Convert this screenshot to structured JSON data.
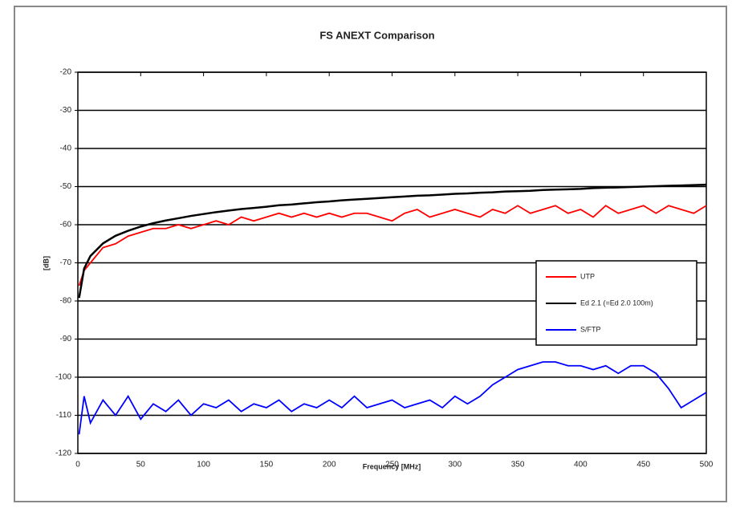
{
  "chart_data": {
    "type": "line",
    "title": "FS ANEXT Comparison",
    "x_label": "Frequency [MHz]",
    "y_label": "[dB]",
    "x": [
      1,
      5,
      10,
      20,
      30,
      40,
      50,
      60,
      70,
      80,
      90,
      100,
      110,
      120,
      130,
      140,
      150,
      160,
      170,
      180,
      190,
      200,
      210,
      220,
      230,
      240,
      250,
      260,
      270,
      280,
      290,
      300,
      310,
      320,
      330,
      340,
      350,
      360,
      370,
      380,
      390,
      400,
      410,
      420,
      430,
      440,
      450,
      460,
      470,
      480,
      490,
      500
    ],
    "series": [
      {
        "name": "UTP",
        "color": "#ff0000",
        "values": [
          -76,
          -72,
          -70,
          -66,
          -65,
          -63,
          -62,
          -61,
          -61,
          -60,
          -61,
          -60,
          -59,
          -60,
          -58,
          -59,
          -58,
          -57,
          -58,
          -57,
          -58,
          -57,
          -58,
          -57,
          -57,
          -58,
          -59,
          -57,
          -56,
          -58,
          -57,
          -56,
          -57,
          -58,
          -56,
          -57,
          -55,
          -57,
          -56,
          -55,
          -57,
          -56,
          -58,
          -55,
          -57,
          -56,
          -55,
          -57,
          -55,
          -56,
          -57,
          -55
        ]
      },
      {
        "name": "Ed 2.1 (=Ed 2.0 100m)",
        "color": "#000000",
        "values": [
          -79.2,
          -71.5,
          -68.2,
          -64.9,
          -62.9,
          -61.6,
          -60.5,
          -59.6,
          -58.9,
          -58.3,
          -57.7,
          -57.2,
          -56.7,
          -56.3,
          -55.9,
          -55.6,
          -55.3,
          -54.9,
          -54.7,
          -54.4,
          -54.1,
          -53.9,
          -53.6,
          -53.4,
          -53.2,
          -53.0,
          -52.8,
          -52.6,
          -52.4,
          -52.3,
          -52.1,
          -51.9,
          -51.8,
          -51.6,
          -51.5,
          -51.3,
          -51.2,
          -51.1,
          -50.9,
          -50.8,
          -50.7,
          -50.6,
          -50.4,
          -50.3,
          -50.2,
          -50.1,
          -50.0,
          -49.9,
          -49.8,
          -49.7,
          -49.6,
          -49.5
        ]
      },
      {
        "name": "S/FTP",
        "color": "#0000ff",
        "values": [
          -115,
          -105,
          -112,
          -106,
          -110,
          -105,
          -111,
          -107,
          -109,
          -106,
          -110,
          -107,
          -108,
          -106,
          -109,
          -107,
          -108,
          -106,
          -109,
          -107,
          -108,
          -106,
          -108,
          -105,
          -108,
          -107,
          -106,
          -108,
          -107,
          -106,
          -108,
          -105,
          -107,
          -105,
          -102,
          -100,
          -98,
          -97,
          -96,
          -96,
          -97,
          -97,
          -98,
          -97,
          -99,
          -97,
          -97,
          -99,
          -103,
          -108,
          -106,
          -104
        ]
      }
    ],
    "xlim": [
      0,
      500
    ],
    "xticks": [
      0,
      50,
      100,
      150,
      200,
      250,
      300,
      350,
      400,
      450,
      500
    ],
    "ylim": [
      -120,
      -20
    ],
    "yticks": [
      -120,
      -110,
      -100,
      -90,
      -80,
      -70,
      -60,
      -50,
      -40,
      -30,
      -20
    ],
    "grid": true
  }
}
